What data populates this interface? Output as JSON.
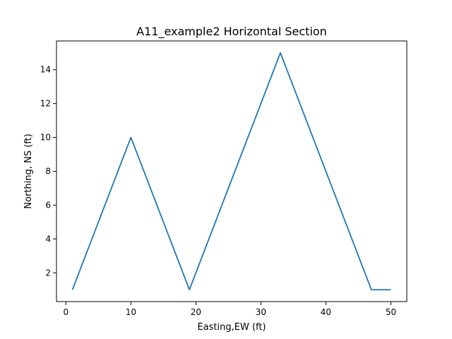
{
  "chart_data": {
    "type": "line",
    "title": "A11_example2 Horizontal Section",
    "xlabel": "Easting,EW (ft)",
    "ylabel": "Northing, NS (ft)",
    "xlim": [
      -1.45,
      52.45
    ],
    "ylim": [
      0.3,
      15.7
    ],
    "xticks": [
      0,
      10,
      20,
      30,
      40,
      50
    ],
    "yticks": [
      2,
      4,
      6,
      8,
      10,
      12,
      14
    ],
    "xtick_labels": [
      "0",
      "10",
      "20",
      "30",
      "40",
      "50"
    ],
    "ytick_labels": [
      "2",
      "4",
      "6",
      "8",
      "10",
      "12",
      "14"
    ],
    "grid": false,
    "series": [
      {
        "x": [
          1,
          10,
          19,
          33,
          47,
          50
        ],
        "y": [
          1,
          10,
          1,
          15,
          1,
          1
        ],
        "color": "#1f77b4"
      }
    ]
  }
}
